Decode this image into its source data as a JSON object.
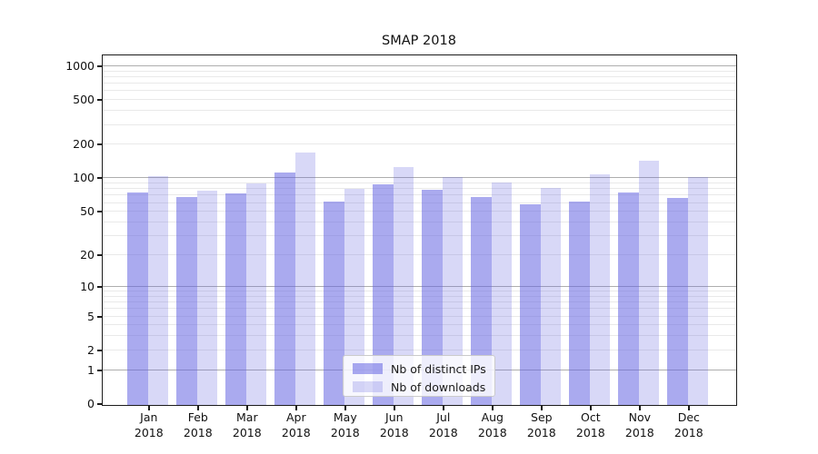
{
  "chart_data": {
    "type": "bar",
    "title": "SMAP 2018",
    "categories": [
      "Jan",
      "Feb",
      "Mar",
      "Apr",
      "May",
      "Jun",
      "Jul",
      "Aug",
      "Sep",
      "Oct",
      "Nov",
      "Dec"
    ],
    "year_label": "2018",
    "series": [
      {
        "name": "Nb of distinct IPs",
        "color": "#6464e1",
        "alpha": 0.55,
        "values": [
          75,
          69,
          74,
          115,
          63,
          90,
          80,
          69,
          59,
          62,
          75,
          68
        ]
      },
      {
        "name": "Nb of downloads",
        "color": "#6464e1",
        "alpha": 0.25,
        "values": [
          106,
          78,
          91,
          172,
          81,
          128,
          103,
          92,
          83,
          109,
          145,
          103
        ]
      }
    ],
    "yscale": "log1p",
    "yticks": [
      0,
      1,
      2,
      5,
      10,
      20,
      50,
      100,
      200,
      500,
      1000
    ],
    "ylim": [
      0,
      1285
    ],
    "xlabel": "",
    "ylabel": "",
    "grid": "horizontal",
    "legend_position": "lower-center",
    "colors": {
      "major_grid": "#aeaeae",
      "minor_grid": "#e9e9e9",
      "spine": "#1c1c1c",
      "text": "#111111"
    }
  }
}
